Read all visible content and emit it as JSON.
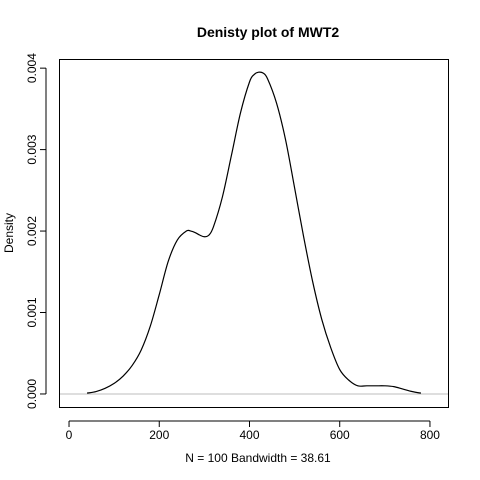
{
  "chart_data": {
    "type": "line",
    "title": "Denisty plot of  MWT2",
    "xlabel": "N = 100   Bandwidth = 38.61",
    "ylabel": "Density",
    "xlim": [
      -20,
      840
    ],
    "ylim": [
      -0.00016,
      0.0041
    ],
    "x_ticks": [
      0,
      200,
      400,
      600,
      800
    ],
    "x_tick_labels": [
      "0",
      "200",
      "400",
      "600",
      "800"
    ],
    "y_ticks": [
      0.0,
      0.001,
      0.002,
      0.003,
      0.004
    ],
    "y_tick_labels": [
      "0.000",
      "0.001",
      "0.002",
      "0.003",
      "0.004"
    ],
    "grid": false,
    "baseline": 0,
    "series": [
      {
        "x": [
          40,
          60,
          80,
          100,
          120,
          140,
          160,
          180,
          200,
          220,
          240,
          260,
          270,
          280,
          290,
          300,
          310,
          320,
          340,
          360,
          380,
          400,
          410,
          420,
          430,
          440,
          460,
          480,
          500,
          520,
          540,
          560,
          580,
          600,
          620,
          640,
          660,
          680,
          700,
          720,
          740,
          760,
          780
        ],
        "y": [
          1e-05,
          3e-05,
          7e-05,
          0.00013,
          0.00022,
          0.00035,
          0.00054,
          0.00083,
          0.00122,
          0.00163,
          0.00189,
          0.002,
          0.002,
          0.00198,
          0.00195,
          0.00193,
          0.00195,
          0.00205,
          0.00242,
          0.00293,
          0.00345,
          0.00383,
          0.00392,
          0.00395,
          0.00394,
          0.00387,
          0.00357,
          0.00312,
          0.00253,
          0.00193,
          0.00138,
          0.00092,
          0.00057,
          0.0003,
          0.00017,
          0.0001,
          0.0001,
          0.0001,
          0.0001,
          9e-05,
          6e-05,
          3e-05,
          1e-05
        ],
        "color": "#000000"
      }
    ]
  }
}
